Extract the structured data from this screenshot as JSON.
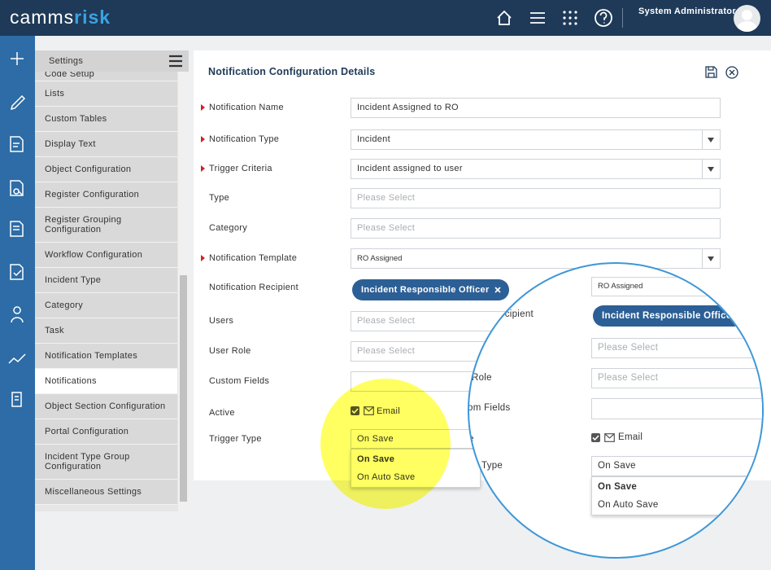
{
  "header": {
    "logo_a": "camms",
    "logo_b": "risk",
    "user": "System Administrator"
  },
  "sidebar": {
    "title": "Settings",
    "selected": 12,
    "items": [
      "Code Setup",
      "Lists",
      "Custom Tables",
      "Display Text",
      "Object Configuration",
      "Register Configuration",
      "Register Grouping Configuration",
      "Workflow Configuration",
      "Incident Type",
      "Category",
      "Task",
      "Notification Templates",
      "Notifications",
      "Object Section Configuration",
      "Portal Configuration",
      "Incident Type Group Configuration",
      "Miscellaneous Settings"
    ]
  },
  "form": {
    "title": "Notification Configuration Details",
    "fields": [
      {
        "label": "Notification Name",
        "required": true,
        "kind": "text",
        "value": "Incident Assigned to RO"
      },
      {
        "label": "Notification Type",
        "required": true,
        "kind": "select",
        "value": "Incident"
      },
      {
        "label": "Trigger Criteria",
        "required": true,
        "kind": "select",
        "value": "Incident assigned to user"
      },
      {
        "label": "Type",
        "required": false,
        "kind": "text",
        "placeholder": "Please Select"
      },
      {
        "label": "Category",
        "required": false,
        "kind": "text",
        "placeholder": "Please Select"
      },
      {
        "label": "Notification Template",
        "required": true,
        "kind": "select",
        "value": "RO Assigned"
      },
      {
        "label": "Notification Recipient",
        "required": false,
        "kind": "chips",
        "value": "Incident Responsible Officer"
      },
      {
        "label": "Users",
        "required": false,
        "kind": "text",
        "placeholder": "Please Select"
      },
      {
        "label": "User Role",
        "required": false,
        "kind": "text",
        "placeholder": "Please Select"
      },
      {
        "label": "Custom Fields",
        "required": false,
        "kind": "text",
        "value": ""
      },
      {
        "label": "Active",
        "required": false,
        "kind": "checkbox",
        "value": "Email"
      },
      {
        "label": "Trigger Type",
        "required": false,
        "kind": "dropdown",
        "value": "On Save",
        "options": [
          "On Save",
          "On Auto Save"
        ]
      }
    ]
  },
  "zoom": {
    "labels": [
      "ecipient",
      "Role",
      "om Fields",
      "e",
      "Type"
    ],
    "template": "RO Assigned",
    "chip": "Incident Responsible Officer",
    "placeholders": [
      "Please Select",
      "Please Select"
    ],
    "email": "Email",
    "trigger": "On Save",
    "options": [
      "On Save",
      "On Auto Save"
    ]
  }
}
